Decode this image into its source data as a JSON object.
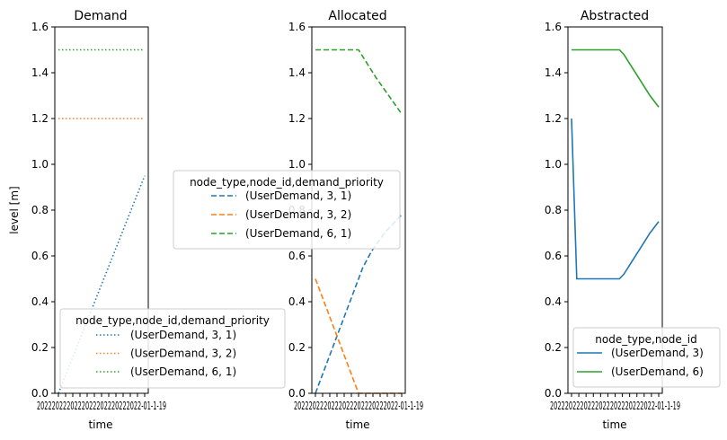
{
  "chart_data": [
    {
      "type": "line",
      "title": "Demand",
      "xlabel": "time",
      "ylabel": "level [m]",
      "ylim": [
        0,
        1.6
      ],
      "yticks": [
        "0.0",
        "0.2",
        "0.4",
        "0.6",
        "0.8",
        "1.0",
        "1.2",
        "1.4",
        "1.6"
      ],
      "x_tick_text": "2022-01-01 ... 2022-01-19 (overlapping date labels)",
      "line_style": "dotted",
      "legend": {
        "title": "node_type,node_id,demand_priority",
        "position": "lower-left"
      },
      "series": [
        {
          "name": "(UserDemand, 3, 1)",
          "color": "#1f77b4",
          "x": [
            0,
            1
          ],
          "y": [
            0.0,
            0.95
          ]
        },
        {
          "name": "(UserDemand, 3, 2)",
          "color": "#ff7f0e",
          "x": [
            0,
            1
          ],
          "y": [
            1.2,
            1.2
          ]
        },
        {
          "name": "(UserDemand, 6, 1)",
          "color": "#2ca02c",
          "x": [
            0,
            1
          ],
          "y": [
            1.5,
            1.5
          ]
        }
      ]
    },
    {
      "type": "line",
      "title": "Allocated",
      "xlabel": "time",
      "ylim": [
        0,
        1.6
      ],
      "yticks": [
        "0.0",
        "0.2",
        "0.4",
        "0.6",
        "0.8",
        "1.0",
        "1.2",
        "1.4",
        "1.6"
      ],
      "x_tick_text": "2022-01-01 ... 2022-01-19 (overlapping date labels)",
      "line_style": "dashed",
      "legend": {
        "title": "node_type,node_id,demand_priority",
        "position": "center-left"
      },
      "series": [
        {
          "name": "(UserDemand, 3, 1)",
          "color": "#1f77b4",
          "x": [
            0,
            0.5,
            0.55,
            0.65,
            0.8,
            1
          ],
          "y": [
            0.0,
            0.5,
            0.55,
            0.62,
            0.7,
            0.78
          ]
        },
        {
          "name": "(UserDemand, 3, 2)",
          "color": "#ff7f0e",
          "x": [
            0,
            0.45,
            0.5,
            1
          ],
          "y": [
            0.5,
            0.05,
            0.0,
            0.0
          ]
        },
        {
          "name": "(UserDemand, 6, 1)",
          "color": "#2ca02c",
          "x": [
            0,
            0.5,
            0.55,
            0.7,
            0.85,
            1
          ],
          "y": [
            1.5,
            1.5,
            1.47,
            1.38,
            1.3,
            1.22
          ]
        }
      ]
    },
    {
      "type": "line",
      "title": "Abstracted",
      "xlabel": "time",
      "ylim": [
        0,
        1.6
      ],
      "yticks": [
        "0.0",
        "0.2",
        "0.4",
        "0.6",
        "0.8",
        "1.0",
        "1.2",
        "1.4",
        "1.6"
      ],
      "x_tick_text": "2022-01-01 ... 2022-01-19 (overlapping date labels)",
      "line_style": "solid",
      "legend": {
        "title": "node_type,node_id",
        "position": "lower-right"
      },
      "series": [
        {
          "name": "(UserDemand, 3)",
          "color": "#1f77b4",
          "x": [
            0,
            0.06,
            0.55,
            0.6,
            0.7,
            0.8,
            0.9,
            1
          ],
          "y": [
            1.2,
            0.5,
            0.5,
            0.52,
            0.58,
            0.64,
            0.7,
            0.75
          ]
        },
        {
          "name": "(UserDemand, 6)",
          "color": "#2ca02c",
          "x": [
            0,
            0.55,
            0.6,
            0.7,
            0.8,
            0.9,
            1
          ],
          "y": [
            1.5,
            1.5,
            1.48,
            1.42,
            1.36,
            1.3,
            1.25
          ]
        }
      ]
    }
  ]
}
